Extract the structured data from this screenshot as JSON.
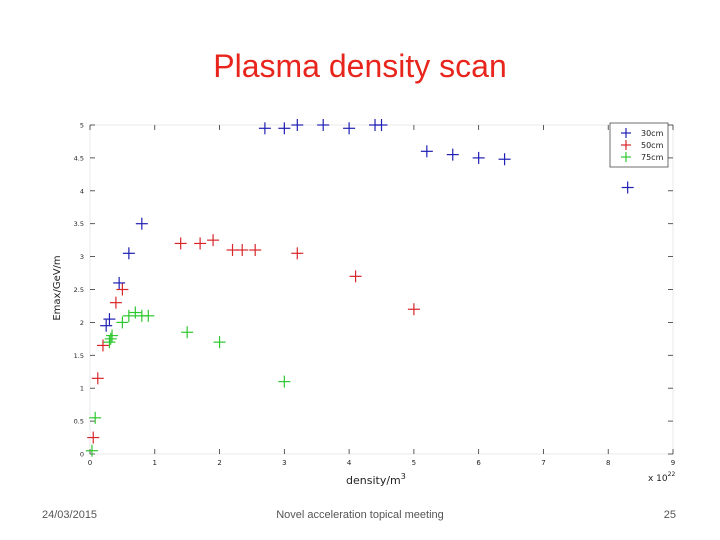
{
  "slide": {
    "title": "Plasma density scan",
    "footer_date": "24/03/2015",
    "footer_center": "Novel acceleration topical meeting",
    "page_number": "25"
  },
  "colors": {
    "title": "#e8251c",
    "blue": "#1f1fb4",
    "red": "#d8262a",
    "green": "#2ec72e"
  },
  "chart_data": {
    "type": "scatter",
    "title": "",
    "xlabel": "density/m",
    "xlabel_superscript": "3",
    "ylabel": "Emax/GeV/m",
    "x_multiplier_label": "x 10",
    "x_multiplier_exponent": "22",
    "xlim": [
      0,
      9
    ],
    "ylim": [
      0,
      5
    ],
    "x_ticks": [
      "0",
      "1",
      "2",
      "3",
      "4",
      "5",
      "6",
      "7",
      "8",
      "9"
    ],
    "y_ticks": [
      "0",
      "0.5",
      "1",
      "1.5",
      "2",
      "2.5",
      "3",
      "3.5",
      "4",
      "4.5",
      "5"
    ],
    "legend_position": "top-right",
    "grid": false,
    "series": [
      {
        "name": "30cm",
        "color": "#1f1fb4",
        "points": [
          [
            0.25,
            1.95
          ],
          [
            0.3,
            2.05
          ],
          [
            0.45,
            2.6
          ],
          [
            0.6,
            3.05
          ],
          [
            0.8,
            3.5
          ],
          [
            2.7,
            4.95
          ],
          [
            3.0,
            4.95
          ],
          [
            3.2,
            5.0
          ],
          [
            3.6,
            5.0
          ],
          [
            4.0,
            4.95
          ],
          [
            4.4,
            5.0
          ],
          [
            4.5,
            5.0
          ],
          [
            5.2,
            4.6
          ],
          [
            5.6,
            4.55
          ],
          [
            6.0,
            4.5
          ],
          [
            6.4,
            4.48
          ],
          [
            8.3,
            4.05
          ]
        ]
      },
      {
        "name": "50cm",
        "color": "#d8262a",
        "points": [
          [
            0.05,
            0.25
          ],
          [
            0.12,
            1.15
          ],
          [
            0.2,
            1.65
          ],
          [
            0.4,
            2.3
          ],
          [
            0.5,
            2.5
          ],
          [
            1.4,
            3.2
          ],
          [
            1.7,
            3.2
          ],
          [
            1.9,
            3.25
          ],
          [
            2.2,
            3.1
          ],
          [
            2.35,
            3.1
          ],
          [
            2.55,
            3.1
          ],
          [
            3.2,
            3.05
          ],
          [
            4.1,
            2.7
          ],
          [
            5.0,
            2.2
          ]
        ]
      },
      {
        "name": "75cm",
        "color": "#2ec72e",
        "points": [
          [
            0.03,
            0.05
          ],
          [
            0.08,
            0.55
          ],
          [
            0.3,
            1.7
          ],
          [
            0.32,
            1.75
          ],
          [
            0.34,
            1.8
          ],
          [
            0.5,
            2.0
          ],
          [
            0.6,
            2.1
          ],
          [
            0.7,
            2.15
          ],
          [
            0.8,
            2.1
          ],
          [
            0.9,
            2.1
          ],
          [
            1.5,
            1.85
          ],
          [
            2.0,
            1.7
          ],
          [
            3.0,
            1.1
          ]
        ]
      }
    ]
  }
}
